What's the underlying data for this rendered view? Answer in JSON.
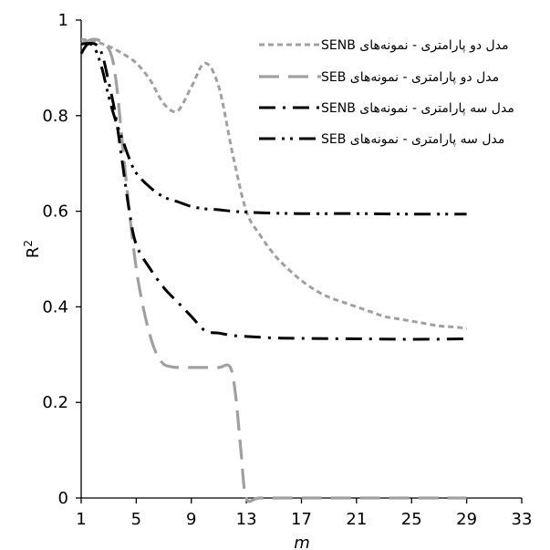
{
  "chart_data": {
    "type": "line",
    "title": "",
    "xlabel": "m",
    "ylabel": "R2",
    "ylabel_main": "R",
    "ylabel_sup": "2",
    "xlim": [
      1,
      33
    ],
    "ylim": [
      0,
      1
    ],
    "xticks": [
      1,
      5,
      9,
      13,
      17,
      21,
      25,
      29,
      33
    ],
    "yticks": [
      0,
      0.2,
      0.4,
      0.6,
      0.8,
      1
    ],
    "ytick_labels": [
      "0",
      "0.2",
      "0.4",
      "0.6",
      "0.8",
      "1"
    ],
    "grid": false,
    "legend_position": "top-right",
    "series": [
      {
        "name": "مدل دو پارامتری - نمونه‌های SENB",
        "color": "#a0a0a0",
        "dash": "short-dash",
        "x": [
          1,
          2,
          3,
          4,
          5,
          6,
          7,
          8,
          9,
          10,
          11,
          12,
          13,
          14,
          15,
          16,
          17,
          18,
          19,
          20,
          21,
          22,
          23,
          24,
          25,
          26,
          27,
          28,
          29
        ],
        "y": [
          0.96,
          0.955,
          0.945,
          0.93,
          0.91,
          0.875,
          0.825,
          0.81,
          0.86,
          0.91,
          0.86,
          0.72,
          0.6,
          0.55,
          0.51,
          0.48,
          0.455,
          0.435,
          0.42,
          0.41,
          0.4,
          0.39,
          0.38,
          0.375,
          0.37,
          0.365,
          0.36,
          0.358,
          0.355
        ]
      },
      {
        "name": "مدل دو پارامتری - نمونه‌های SEB",
        "color": "#a0a0a0",
        "dash": "long-dash",
        "x": [
          1,
          2,
          3,
          3.5,
          4,
          4.5,
          5,
          5.5,
          6,
          6.5,
          7,
          7.5,
          8,
          9,
          10,
          11,
          11.8,
          12.2,
          12.6,
          13,
          14,
          17,
          21,
          25,
          29
        ],
        "y": [
          0.95,
          0.96,
          0.94,
          0.88,
          0.74,
          0.6,
          0.48,
          0.4,
          0.34,
          0.3,
          0.28,
          0.275,
          0.273,
          0.273,
          0.273,
          0.273,
          0.275,
          0.22,
          0.1,
          0,
          0,
          0,
          0,
          0,
          0
        ]
      },
      {
        "name": "مدل سه پارامتری - نمونه‌های SENB",
        "color": "#000000",
        "dash": "dash-dot",
        "x": [
          1,
          2,
          2.5,
          3,
          3.5,
          4,
          4.5,
          5,
          6,
          7,
          8,
          9,
          10,
          11,
          12,
          13,
          15,
          17,
          21,
          25,
          29
        ],
        "y": [
          0.95,
          0.95,
          0.93,
          0.87,
          0.8,
          0.7,
          0.6,
          0.53,
          0.48,
          0.44,
          0.41,
          0.38,
          0.35,
          0.345,
          0.34,
          0.338,
          0.335,
          0.334,
          0.333,
          0.332,
          0.333
        ]
      },
      {
        "name": "مدل سه پارامتری - نمونه‌های SEB",
        "color": "#000000",
        "dash": "dash-dot-dot",
        "x": [
          1,
          1.5,
          2,
          2.5,
          3,
          3.5,
          4,
          4.5,
          5,
          6,
          7,
          8,
          9,
          10,
          11,
          12,
          13,
          15,
          17,
          21,
          25,
          29
        ],
        "y": [
          0.93,
          0.95,
          0.94,
          0.9,
          0.84,
          0.79,
          0.75,
          0.71,
          0.68,
          0.65,
          0.63,
          0.62,
          0.61,
          0.605,
          0.603,
          0.6,
          0.598,
          0.596,
          0.595,
          0.595,
          0.594,
          0.594
        ]
      }
    ]
  }
}
